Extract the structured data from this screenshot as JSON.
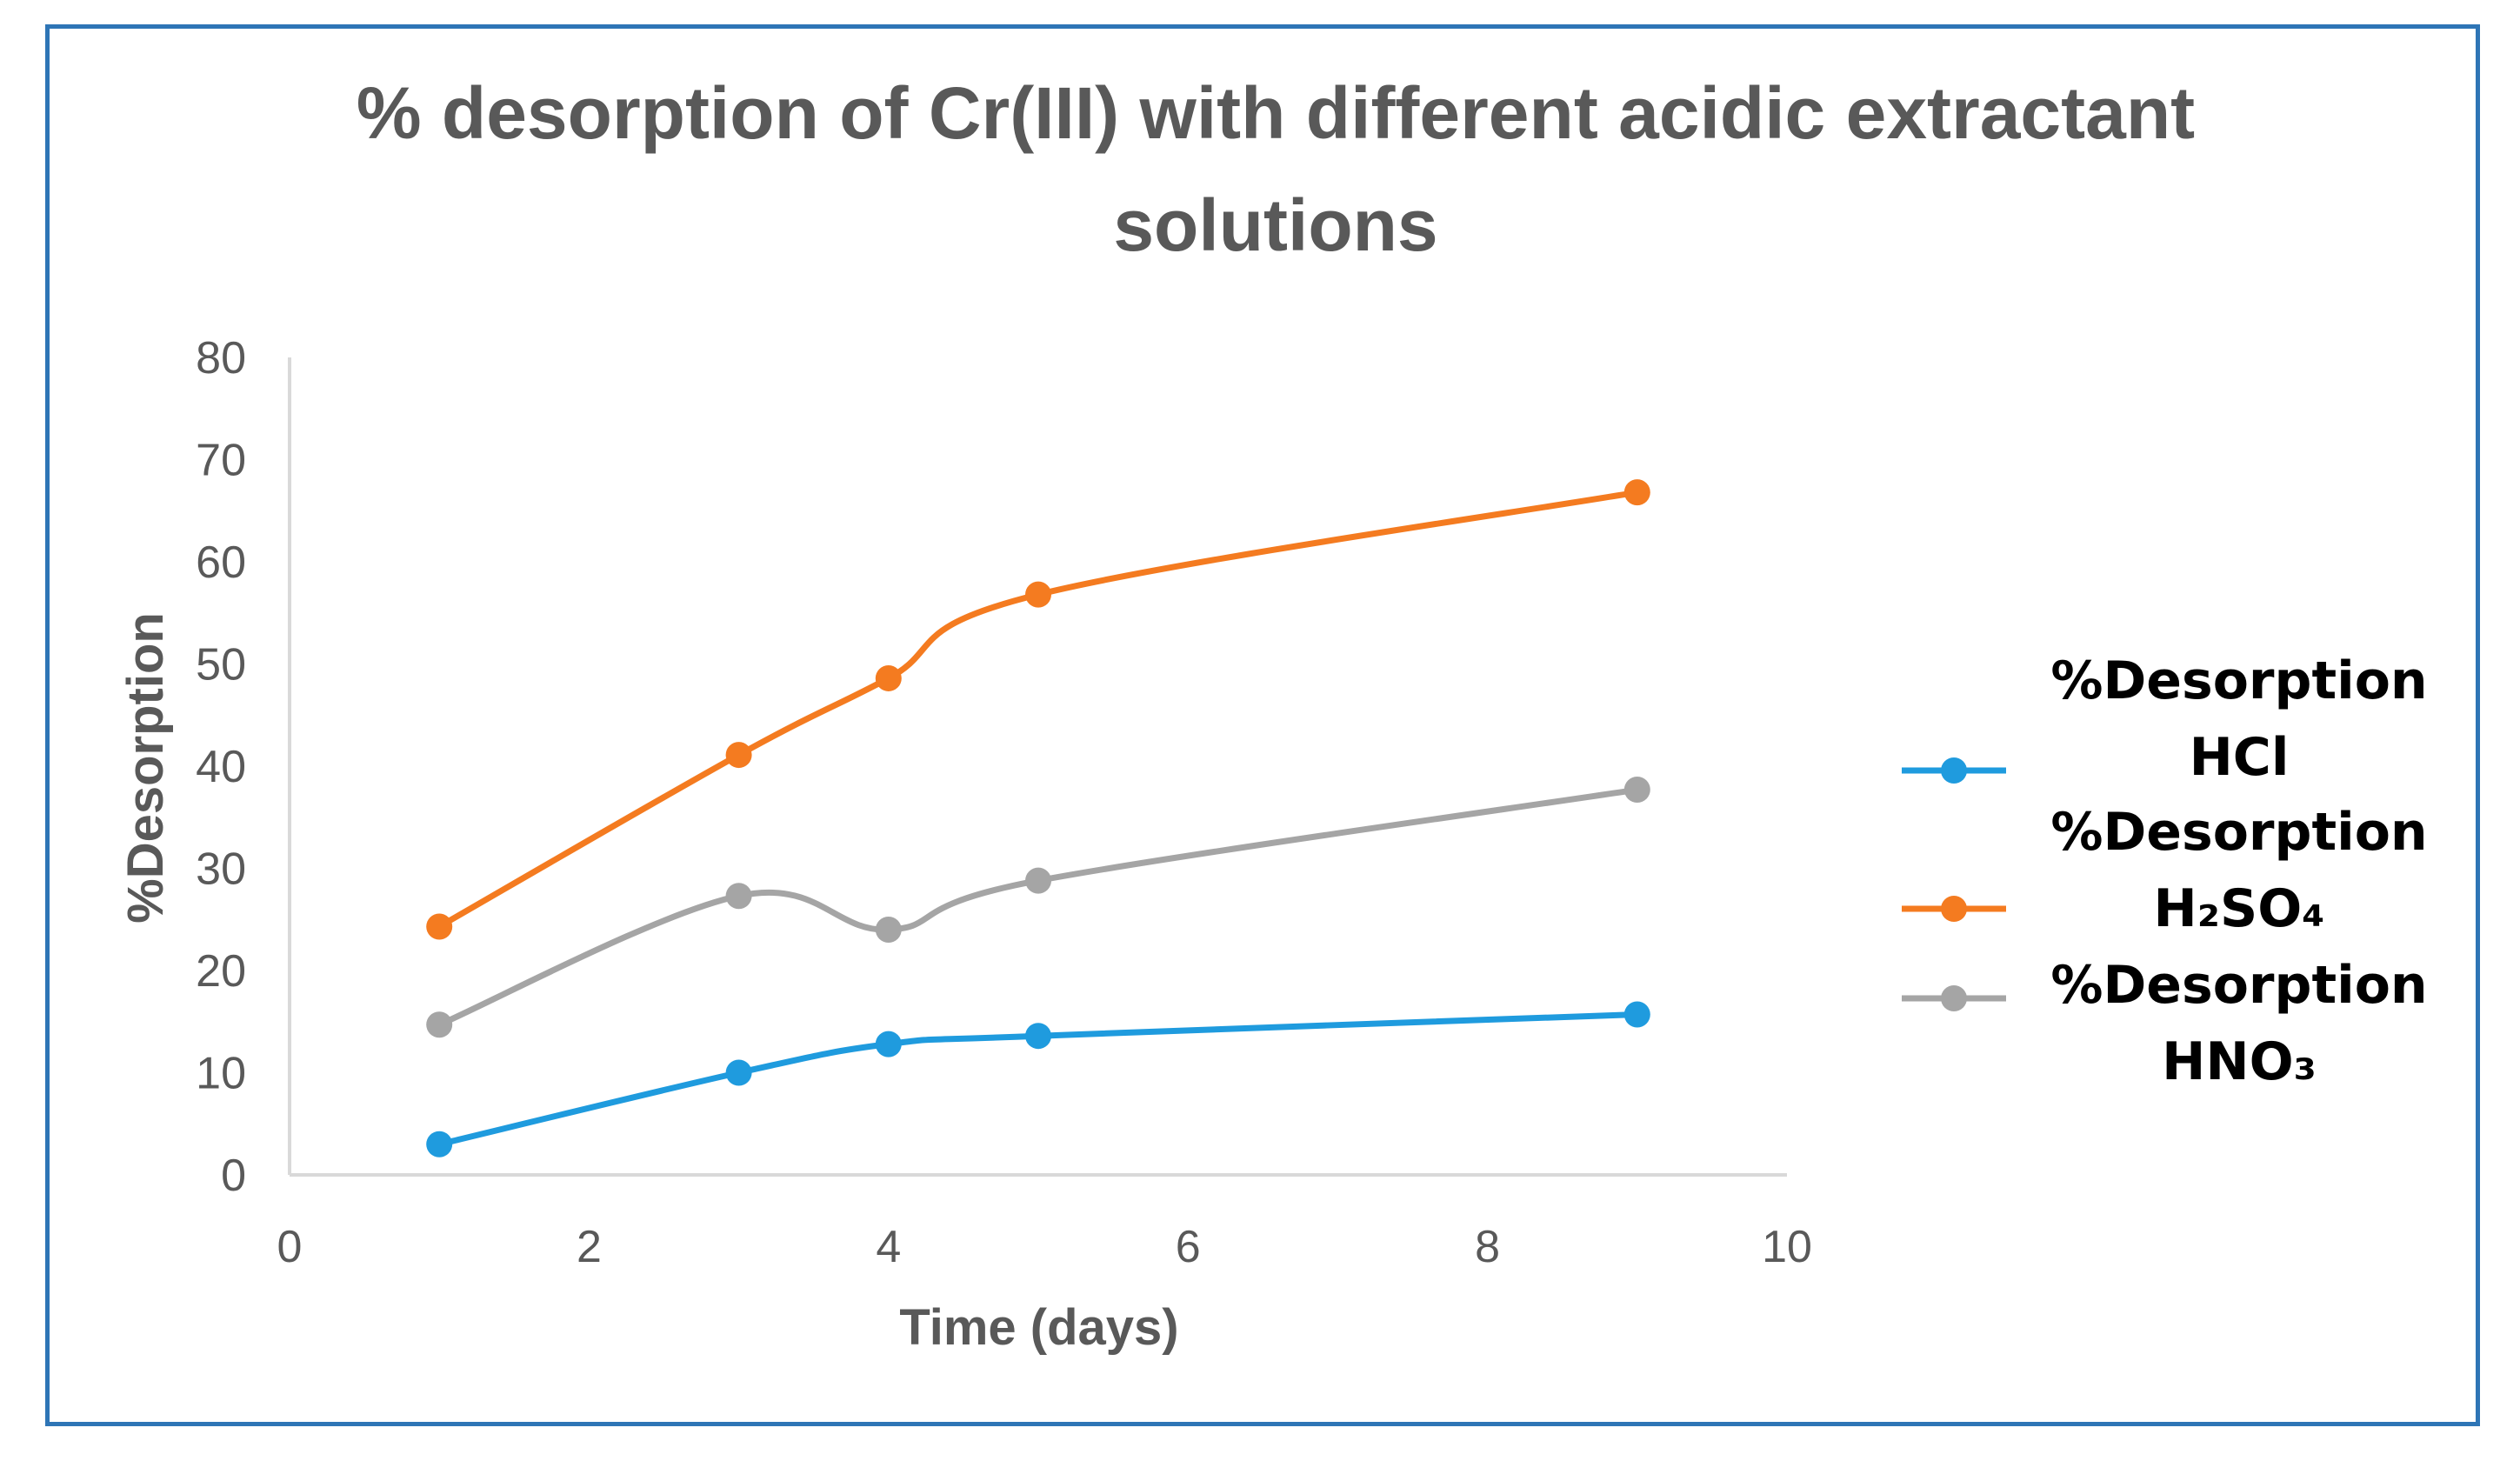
{
  "chart_data": {
    "type": "line",
    "title_lines": [
      "% desorption of Cr(III) with different acidic extractant",
      "solutions"
    ],
    "xlabel": "Time (days)",
    "ylabel": "%Desorption",
    "xlim": [
      0,
      10
    ],
    "ylim": [
      0,
      80
    ],
    "x_ticks": [
      0,
      2,
      4,
      6,
      8,
      10
    ],
    "y_ticks": [
      0,
      10,
      20,
      30,
      40,
      50,
      60,
      70,
      80
    ],
    "x": [
      1,
      3,
      4,
      5,
      9
    ],
    "grid": false,
    "legend_position": "right",
    "series": [
      {
        "name": "%Desorption HCl",
        "legend_line1": "%Desorption",
        "legend_line2": "HCl",
        "color": "#1F9BDE",
        "values": [
          3,
          10,
          12.8,
          13.6,
          15.7
        ]
      },
      {
        "name": "%Desorption H2SO4",
        "legend_line1": "%Desorption",
        "legend_line2": "H₂SO₄",
        "color": "#F47B20",
        "values": [
          24.3,
          41.1,
          48.6,
          56.8,
          66.8
        ]
      },
      {
        "name": "%Desorption HNO3",
        "legend_line1": "%Desorption",
        "legend_line2": "HNO₃",
        "color": "#A5A5A5",
        "values": [
          14.7,
          27.3,
          24,
          28.8,
          37.7
        ]
      }
    ]
  }
}
